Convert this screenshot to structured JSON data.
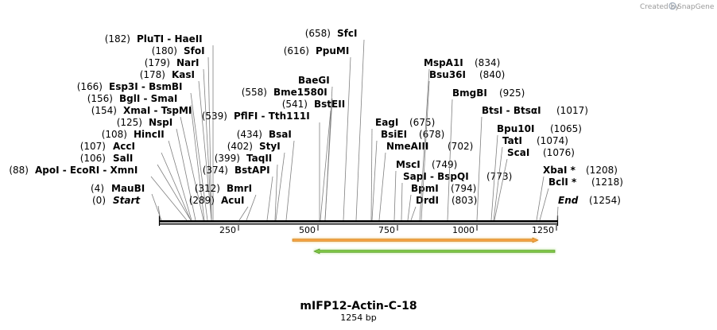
{
  "credit": "Created by",
  "brand": "SnapGene",
  "brand_color": "#aab4c0",
  "map_title": "mIFP12-Actin-C-18",
  "map_length": "1254 bp",
  "sequence_length": 1254,
  "axis_ticks": [
    "250",
    "500",
    "750",
    "1000",
    "1250"
  ],
  "features": [
    {
      "name": "orange-feature",
      "direction": "forward",
      "color": "#f5a142",
      "stroke": "#c07a10",
      "glow": "#fbe3b8",
      "start": 421,
      "end": 1187
    },
    {
      "name": "green-feature",
      "direction": "reverse",
      "color": "#7ec544",
      "stroke": "#4b8f22",
      "glow": "#d9f0c2",
      "start": 487,
      "end": 1246
    }
  ],
  "sites": [
    {
      "pos": "(0)",
      "label": "Start",
      "bp": 0,
      "italic": true
    },
    {
      "pos": "(4)",
      "label": "MauBI",
      "bp": 4
    },
    {
      "pos": "(88)",
      "label": "ApoI  - EcoRI  - XmnI",
      "bp": 88
    },
    {
      "pos": "(106)",
      "label": "SalI",
      "bp": 106
    },
    {
      "pos": "(107)",
      "label": "AccI",
      "bp": 107
    },
    {
      "pos": "(108)",
      "label": "HincII",
      "bp": 108
    },
    {
      "pos": "(125)",
      "label": "NspI",
      "bp": 125
    },
    {
      "pos": "(154)",
      "label": "XmaI  - TspMI",
      "bp": 154
    },
    {
      "pos": "(156)",
      "label": "BglI  - SmaI",
      "bp": 156
    },
    {
      "pos": "(166)",
      "label": "Esp3I  - BsmBI",
      "bp": 166
    },
    {
      "pos": "(178)",
      "label": "KasI",
      "bp": 178
    },
    {
      "pos": "(179)",
      "label": "NarI",
      "bp": 179
    },
    {
      "pos": "(180)",
      "label": "SfoI",
      "bp": 180
    },
    {
      "pos": "(182)",
      "label": "PluTI  - HaeII",
      "bp": 182
    },
    {
      "pos": "(289)",
      "label": "AcuI",
      "bp": 289
    },
    {
      "pos": "(312)",
      "label": "BmrI",
      "bp": 312
    },
    {
      "pos": "(374)",
      "label": "BstAPI",
      "bp": 374
    },
    {
      "pos": "(399)",
      "label": "TaqII",
      "bp": 399
    },
    {
      "pos": "(402)",
      "label": "StyI",
      "bp": 402
    },
    {
      "pos": "(434)",
      "label": "BsaI",
      "bp": 434
    },
    {
      "pos": "(539)",
      "label": "PflFI  - Tth111I",
      "bp": 539
    },
    {
      "pos": "(541)",
      "label": "BstEII",
      "bp": 541
    },
    {
      "pos": "(558)",
      "label": "Bme1580I",
      "bp": 558
    },
    {
      "pos": "(558)",
      "label": "BaeGI",
      "bp": 558,
      "pos_hidden": true
    },
    {
      "pos": "(616)",
      "label": "PpuMI",
      "bp": 616
    },
    {
      "pos": "(658)",
      "label": "SfcI",
      "bp": 658
    },
    {
      "pos": "(675)",
      "label": "EagI",
      "bp": 675
    },
    {
      "pos": "(678)",
      "label": "BsiEI",
      "bp": 678
    },
    {
      "pos": "(702)",
      "label": "NmeAIII",
      "bp": 702
    },
    {
      "pos": "(749)",
      "label": "MscI",
      "bp": 749
    },
    {
      "pos": "(773)",
      "label": "SapI  - BspQI",
      "bp": 773
    },
    {
      "pos": "(794)",
      "label": "BpmI",
      "bp": 794
    },
    {
      "pos": "(803)",
      "label": "DrdI",
      "bp": 803
    },
    {
      "pos": "(834)",
      "label": "MspA1I",
      "bp": 834
    },
    {
      "pos": "(840)",
      "label": "Bsu36I",
      "bp": 840
    },
    {
      "pos": "(925)",
      "label": "BmgBI",
      "bp": 925
    },
    {
      "pos": "(1017)",
      "label": "BtsI  - BtsαI",
      "bp": 1017
    },
    {
      "pos": "(1065)",
      "label": "Bpu10I",
      "bp": 1065
    },
    {
      "pos": "(1074)",
      "label": "TatI",
      "bp": 1074
    },
    {
      "pos": "(1076)",
      "label": "ScaI",
      "bp": 1076
    },
    {
      "pos": "(1208)",
      "label": "XbaI *",
      "bp": 1208
    },
    {
      "pos": "(1218)",
      "label": "BclI *",
      "bp": 1218
    },
    {
      "pos": "(1254)",
      "label": "End",
      "bp": 1254,
      "italic": true
    }
  ]
}
